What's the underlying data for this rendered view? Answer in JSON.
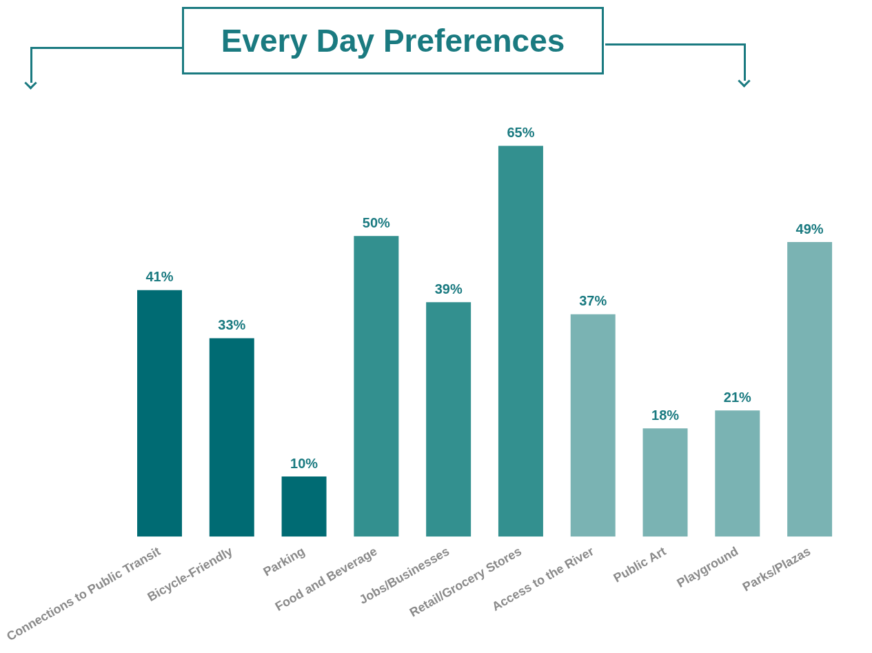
{
  "chart_data": {
    "type": "bar",
    "title": "Every Day Preferences",
    "categories": [
      "Connections to Public Transit",
      "Bicycle-Friendly",
      "Parking",
      "Food and Beverage",
      "Jobs/Businesses",
      "Retail/Grocery Stores",
      "Access to the River",
      "Public Art",
      "Playground",
      "Parks/Plazas"
    ],
    "values": [
      41,
      33,
      10,
      50,
      39,
      65,
      37,
      18,
      21,
      49
    ],
    "value_labels": [
      "41%",
      "33%",
      "10%",
      "50%",
      "39%",
      "65%",
      "37%",
      "18%",
      "21%",
      "49%"
    ],
    "colors": [
      "#006b73",
      "#006b73",
      "#006b73",
      "#33908f",
      "#33908f",
      "#33908f",
      "#7ab3b3",
      "#7ab3b3",
      "#7ab3b3",
      "#7ab3b3"
    ],
    "grid": false,
    "legend": false
  }
}
